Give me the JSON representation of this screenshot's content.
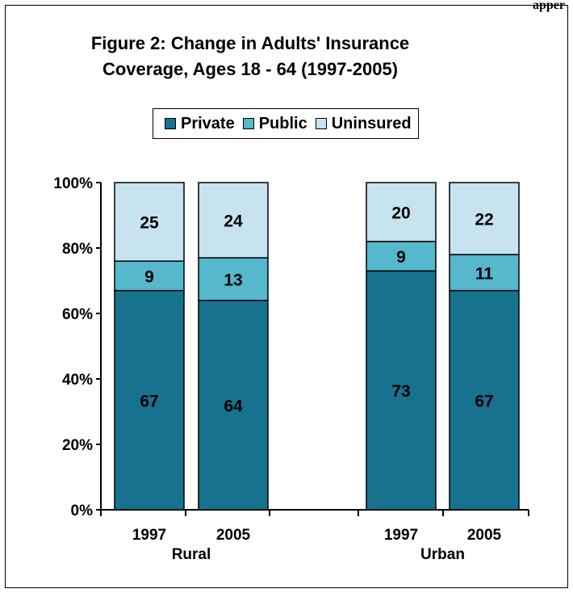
{
  "page_header": "apper",
  "chart_data": {
    "type": "bar",
    "stacked": true,
    "percent_stacked": true,
    "title_lines": [
      "Figure 2: Change in Adults' Insurance",
      "Coverage, Ages 18 - 64 (1997-2005)"
    ],
    "xlabel": "",
    "ylabel": "",
    "groups": [
      {
        "name": "Rural",
        "categories": [
          "1997",
          "2005"
        ]
      },
      {
        "name": "Urban",
        "categories": [
          "1997",
          "2005"
        ]
      }
    ],
    "categories": [
      "Rural 1997",
      "Rural 2005",
      "Urban 1997",
      "Urban 2005"
    ],
    "series": [
      {
        "name": "Private",
        "color": "#17728f",
        "values": [
          67,
          64,
          73,
          67
        ]
      },
      {
        "name": "Public",
        "color": "#55b8cc",
        "values": [
          9,
          13,
          9,
          11
        ]
      },
      {
        "name": "Uninsured",
        "color": "#c6e3ef",
        "values": [
          25,
          24,
          20,
          22
        ]
      }
    ],
    "ylim": [
      0,
      100
    ],
    "yticks": [
      "0%",
      "20%",
      "40%",
      "60%",
      "80%",
      "100%"
    ],
    "grid": false,
    "legend_position": "top"
  }
}
